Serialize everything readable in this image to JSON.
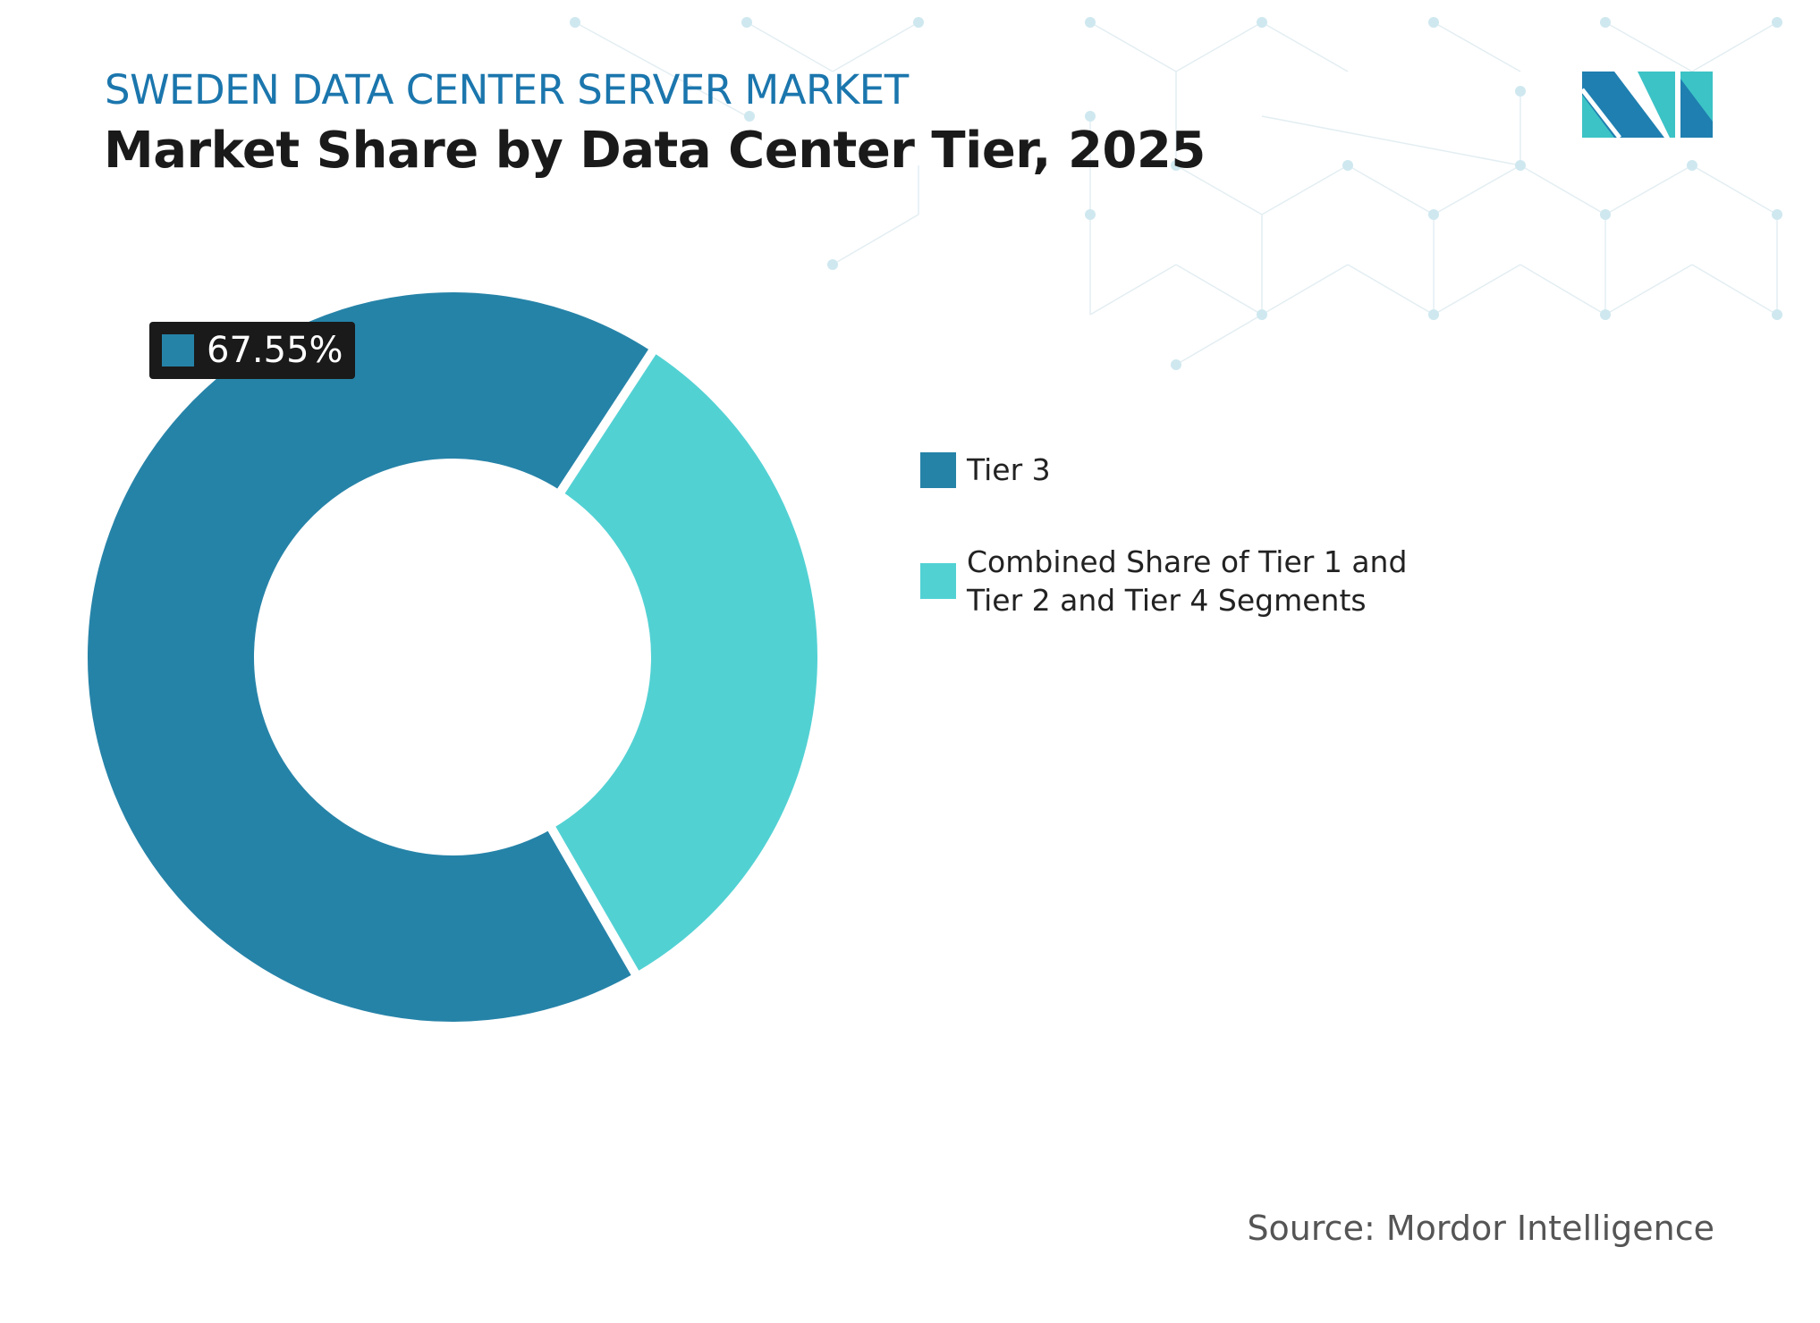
{
  "header": {
    "subtitle": "SWEDEN DATA CENTER SERVER MARKET",
    "title": "Market Share by Data Center Tier, 2025"
  },
  "chart_data": {
    "type": "pie",
    "variant": "donut",
    "title": "Market Share by Data Center Tier, 2025",
    "categories": [
      "Tier 3",
      "Combined Share of Tier 1 and Tier 2 and Tier 4 Segments"
    ],
    "values": [
      67.55,
      32.45
    ],
    "colors": [
      "#2683a8",
      "#52d1d3"
    ],
    "data_labels": [
      {
        "category": "Tier 3",
        "text": "67.55%"
      }
    ],
    "legend_position": "right"
  },
  "legend": [
    {
      "label": "Tier 3",
      "color": "#2683a8"
    },
    {
      "label_line1": "Combined Share of Tier 1 and",
      "label_line2": "Tier 2 and Tier 4 Segments",
      "color": "#52d1d3"
    }
  ],
  "source": "Source: Mordor Intelligence",
  "logo": {
    "name": "mordor-intelligence-logo",
    "colors": [
      "#1f7fb0",
      "#3cc3c6"
    ]
  }
}
